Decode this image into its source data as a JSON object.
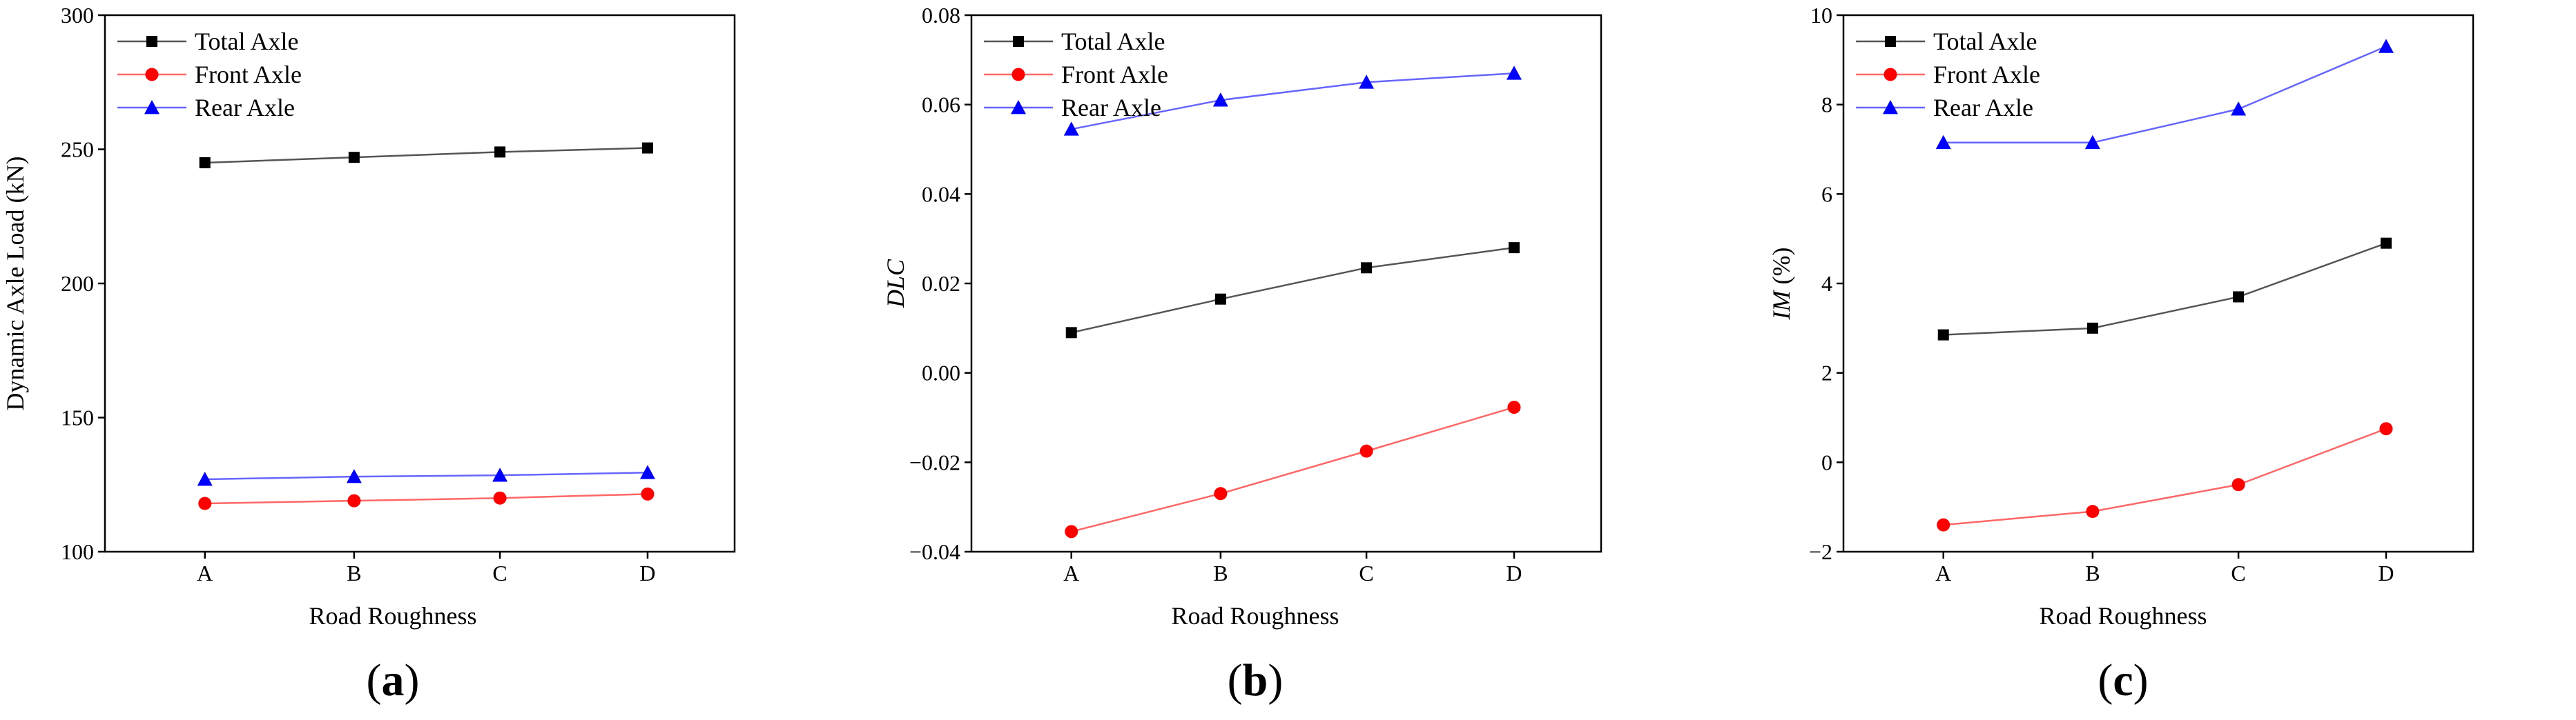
{
  "chart_data": [
    {
      "type": "line",
      "panel_label": "(a)",
      "categories": [
        "A",
        "B",
        "C",
        "D"
      ],
      "xlabel": "Road Roughness",
      "ylabel": "Dynamic Axle Load (kN)",
      "ylim": [
        100,
        300
      ],
      "yticks": [
        100,
        150,
        200,
        250,
        300
      ],
      "ytick_labels": [
        "100",
        "150",
        "200",
        "250",
        "300"
      ],
      "legend_position": "top-left",
      "series": [
        {
          "name": "Total Axle",
          "color": "#000000",
          "line_color": "#555555",
          "marker": "square",
          "values": [
            245,
            247,
            249,
            250.5
          ]
        },
        {
          "name": "Front Axle",
          "color": "#ff0000",
          "line_color": "#ff6666",
          "marker": "circle",
          "values": [
            118,
            119,
            120,
            121.5
          ]
        },
        {
          "name": "Rear Axle",
          "color": "#0000ff",
          "line_color": "#6666ff",
          "marker": "triangle",
          "values": [
            127,
            128,
            128.5,
            129.5
          ]
        }
      ]
    },
    {
      "type": "line",
      "panel_label": "(b)",
      "categories": [
        "A",
        "B",
        "C",
        "D"
      ],
      "xlabel": "Road Roughness",
      "ylabel": "DLC",
      "ylim": [
        -0.04,
        0.08
      ],
      "yticks": [
        -0.04,
        -0.02,
        0.0,
        0.02,
        0.04,
        0.06,
        0.08
      ],
      "ytick_labels": [
        "−0.04",
        "−0.02",
        "0.00",
        "0.02",
        "0.04",
        "0.06",
        "0.08"
      ],
      "legend_position": "top-left",
      "series": [
        {
          "name": "Total Axle",
          "color": "#000000",
          "line_color": "#555555",
          "marker": "square",
          "values": [
            0.009,
            0.0165,
            0.0235,
            0.028
          ]
        },
        {
          "name": "Front Axle",
          "color": "#ff0000",
          "line_color": "#ff6666",
          "marker": "circle",
          "values": [
            -0.0355,
            -0.027,
            -0.0175,
            -0.0077
          ]
        },
        {
          "name": "Rear Axle",
          "color": "#0000ff",
          "line_color": "#6666ff",
          "marker": "triangle",
          "values": [
            0.0545,
            0.061,
            0.065,
            0.067
          ]
        }
      ]
    },
    {
      "type": "line",
      "panel_label": "(c)",
      "categories": [
        "A",
        "B",
        "C",
        "D"
      ],
      "xlabel": "Road Roughness",
      "ylabel": "IM (%)",
      "ylim": [
        -2,
        10
      ],
      "yticks": [
        -2,
        0,
        2,
        4,
        6,
        8,
        10
      ],
      "ytick_labels": [
        "−2",
        "0",
        "2",
        "4",
        "6",
        "8",
        "10"
      ],
      "legend_position": "top-left",
      "series": [
        {
          "name": "Total Axle",
          "color": "#000000",
          "line_color": "#555555",
          "marker": "square",
          "values": [
            2.85,
            3.0,
            3.7,
            4.9
          ]
        },
        {
          "name": "Front Axle",
          "color": "#ff0000",
          "line_color": "#ff6666",
          "marker": "circle",
          "values": [
            -1.4,
            -1.1,
            -0.5,
            0.75
          ]
        },
        {
          "name": "Rear Axle",
          "color": "#0000ff",
          "line_color": "#6666ff",
          "marker": "triangle",
          "values": [
            7.15,
            7.15,
            7.9,
            9.3
          ]
        }
      ]
    }
  ]
}
